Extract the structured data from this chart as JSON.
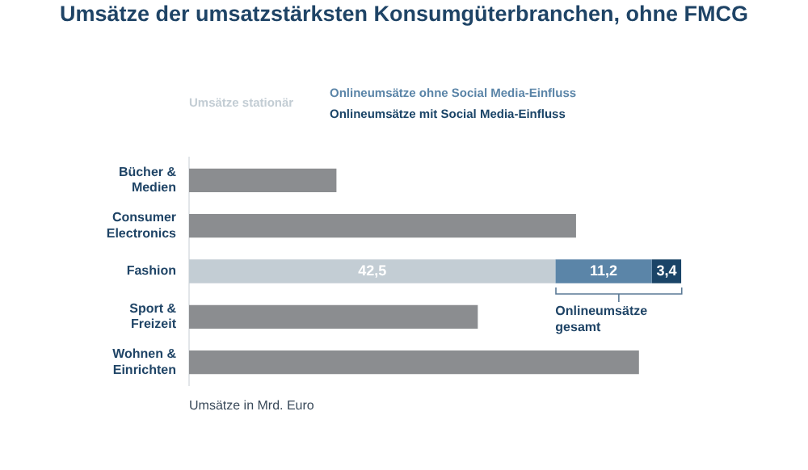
{
  "chart_data": {
    "type": "bar",
    "orientation": "horizontal",
    "stacked": true,
    "title": "Umsätze der umsatzstärksten Konsumgüterbranchen, ohne FMCG",
    "xlabel": "Umsätze in Mrd. Euro",
    "categories": [
      "Bücher & Medien",
      "Consumer Electronics",
      "Fashion",
      "Sport & Freizeit",
      "Wohnen & Einrichten"
    ],
    "series": [
      {
        "color": "#8b8d90",
        "values": [
          17.1,
          44.9,
          null,
          33.5,
          52.2
        ]
      },
      {
        "name": "Umsätze stationär",
        "color": "#c3cdd4",
        "values": [
          null,
          null,
          42.5,
          null,
          null
        ],
        "value_labels": [
          null,
          null,
          "42,5",
          null,
          null
        ]
      },
      {
        "name": "Onlineumsätze ohne Social Media-Einfluss",
        "color": "#5b85a8",
        "values": [
          null,
          null,
          11.2,
          null,
          null
        ],
        "value_labels": [
          null,
          null,
          "11,2",
          null,
          null
        ]
      },
      {
        "name": "Onlineumsätze mit Social Media-Einfluss",
        "color": "#1a4467",
        "values": [
          null,
          null,
          3.4,
          null,
          null
        ],
        "value_labels": [
          null,
          null,
          "3,4",
          null,
          null
        ]
      }
    ],
    "annotations": [
      "Onlineumsätze gesamt"
    ],
    "tick_labels": "y",
    "grid": false,
    "legend": "top"
  }
}
